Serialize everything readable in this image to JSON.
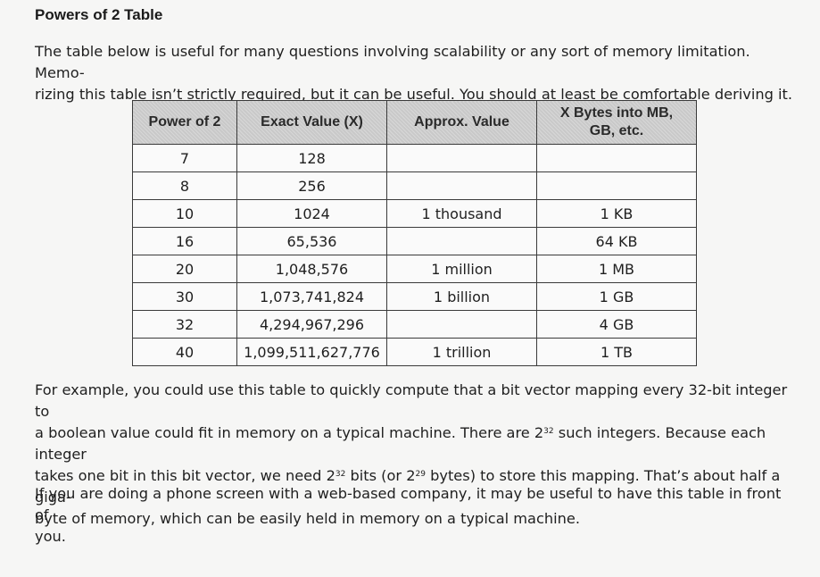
{
  "heading": "Powers of 2 Table",
  "intro_paragraph": {
    "line1": "The table below is useful for many questions involving scalability or any sort of memory limitation. Memo-",
    "line2": "rizing this table isn’t strictly required, but it can be useful. You should at least be comfortable deriving it."
  },
  "table": {
    "headers": [
      "Power of 2",
      "Exact Value (X)",
      "Approx. Value",
      "X Bytes into MB,",
      "GB, etc."
    ],
    "rows": [
      [
        "7",
        "128",
        "",
        ""
      ],
      [
        "8",
        "256",
        "",
        ""
      ],
      [
        "10",
        "1024",
        "1 thousand",
        "1 KB"
      ],
      [
        "16",
        "65,536",
        "",
        "64 KB"
      ],
      [
        "20",
        "1,048,576",
        "1 million",
        "1 MB"
      ],
      [
        "30",
        "1,073,741,824",
        "1 billion",
        "1 GB"
      ],
      [
        "32",
        "4,294,967,296",
        "",
        "4 GB"
      ],
      [
        "40",
        "1,099,511,627,776",
        "1 trillion",
        "1 TB"
      ]
    ]
  },
  "example_paragraph": {
    "line1": "For example, you could use this table to quickly compute that a bit vector mapping every 32-bit integer to",
    "line2_a": "a boolean value could fit in memory on a typical machine. There are 2",
    "line2_sup": "32",
    "line2_b": " such integers. Because each integer",
    "line3_a": "takes one bit in this bit vector, we need 2",
    "line3_sup1": "32",
    "line3_b": " bits (or 2",
    "line3_sup2": "29",
    "line3_c": " bytes) to store this mapping. That’s about half a giga-",
    "line4": "byte of memory, which can be easily held in memory on a typical machine."
  },
  "closing_paragraph": {
    "line1": "If you are doing a phone screen with a web-based company, it may be useful to have this table in front of",
    "line2": "you."
  }
}
